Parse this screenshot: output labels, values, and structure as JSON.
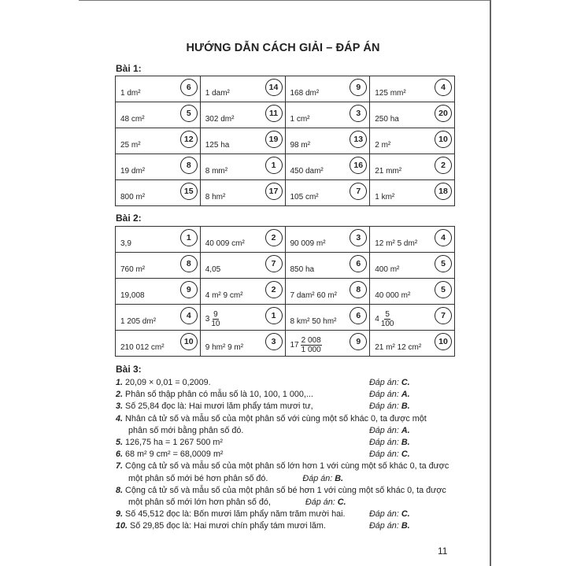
{
  "title": "HƯỚNG DẪN CÁCH GIẢI – ĐÁP ÁN",
  "bai1": {
    "heading": "Bài 1:",
    "rows": [
      [
        {
          "text": "1 dm²",
          "n": "6"
        },
        {
          "text": "1 dam²",
          "n": "14"
        },
        {
          "text": "168 dm²",
          "n": "9"
        },
        {
          "text": "125 mm²",
          "n": "4"
        }
      ],
      [
        {
          "text": "48 cm²",
          "n": "5"
        },
        {
          "text": "302 dm²",
          "n": "11"
        },
        {
          "text": "1 cm²",
          "n": "3"
        },
        {
          "text": "250 ha",
          "n": "20"
        }
      ],
      [
        {
          "text": "25 m²",
          "n": "12"
        },
        {
          "text": "125 ha",
          "n": "19"
        },
        {
          "text": "98 m²",
          "n": "13"
        },
        {
          "text": "2 m²",
          "n": "10"
        }
      ],
      [
        {
          "text": "19 dm²",
          "n": "8"
        },
        {
          "text": "8 mm²",
          "n": "1"
        },
        {
          "text": "450 dam²",
          "n": "16"
        },
        {
          "text": "21 mm²",
          "n": "2"
        }
      ],
      [
        {
          "text": "800 m²",
          "n": "15"
        },
        {
          "text": "8 hm²",
          "n": "17"
        },
        {
          "text": "105 cm²",
          "n": "7"
        },
        {
          "text": "1 km²",
          "n": "18"
        }
      ]
    ]
  },
  "bai2": {
    "heading": "Bài 2:",
    "rows": [
      [
        {
          "text": "3,9",
          "n": "1"
        },
        {
          "text": "40 009 cm²",
          "n": "2"
        },
        {
          "text": "90 009 m²",
          "n": "3"
        },
        {
          "text": "12 m² 5 dm²",
          "n": "4"
        }
      ],
      [
        {
          "text": "760 m²",
          "n": "8"
        },
        {
          "text": "4,05",
          "n": "7"
        },
        {
          "text": "850 ha",
          "n": "6"
        },
        {
          "text": "400 m²",
          "n": "5"
        }
      ],
      [
        {
          "text": "19,008",
          "n": "9"
        },
        {
          "text": "4 m² 9 cm²",
          "n": "2"
        },
        {
          "text": "7 dam² 60 m²",
          "n": "8"
        },
        {
          "text": "40 000 m²",
          "n": "5"
        }
      ],
      [
        {
          "text": "1 205 dm²",
          "n": "4"
        },
        {
          "whole": "3",
          "num": "9",
          "den": "10",
          "n": "1"
        },
        {
          "text": "8 km² 50 hm²",
          "n": "6"
        },
        {
          "whole": "4",
          "num": "5",
          "den": "100",
          "n": "7"
        }
      ],
      [
        {
          "text": "210 012 cm²",
          "n": "10"
        },
        {
          "text": "9 hm² 9 m²",
          "n": "3"
        },
        {
          "whole": "17",
          "num": "2 008",
          "den": "1 000",
          "n": "9"
        },
        {
          "text": "21 m² 12 cm²",
          "n": "10"
        }
      ]
    ]
  },
  "bai3": {
    "heading": "Bài 3:",
    "answer_label": "Đáp án:",
    "items": [
      {
        "num": "1.",
        "text": "20,09 × 0,01 = 0,2009.",
        "letter": "C."
      },
      {
        "num": "2.",
        "text": "Phân số thập phân có mẫu số là 10, 100, 1 000,...",
        "letter": "A."
      },
      {
        "num": "3.",
        "text": "Số 25,84 đọc là: Hai mươi lăm phẩy tám mươi tư,",
        "letter": "B."
      },
      {
        "num": "4.",
        "text": "Nhân cả tử số và mẫu số của một phân số với cùng một số khác 0, ta được một",
        "cont": "phân số mới bằng phân số đó.",
        "letter": "A."
      },
      {
        "num": "5.",
        "text": "126,75 ha = 1 267 500 m²",
        "letter": "B."
      },
      {
        "num": "6.",
        "text": "68 m² 9 cm² = 68,0009 m²",
        "letter": "C."
      },
      {
        "num": "7.",
        "text": "Cộng cả tử số và mẫu số của một phân số lớn hơn 1 với cùng một số khác 0, ta được",
        "cont": "một phân số mới bé hơn phân số đó.",
        "letter": "B."
      },
      {
        "num": "8.",
        "text": "Cộng cả tử số và mẫu số của một phân số bé hơn 1 với cùng một số khác 0, ta được",
        "cont": "một phân số mới lớn hơn phân số đó,",
        "letter": "C."
      },
      {
        "num": "9.",
        "text": "Số 45,512 đọc là: Bốn mươi lăm phẩy năm trăm mười hai.",
        "letter": "C."
      },
      {
        "num": "10.",
        "text": "Số 29,85 đọc là: Hai mươi chín phẩy tám mươi lăm.",
        "letter": "B."
      }
    ]
  },
  "page_number": "11"
}
